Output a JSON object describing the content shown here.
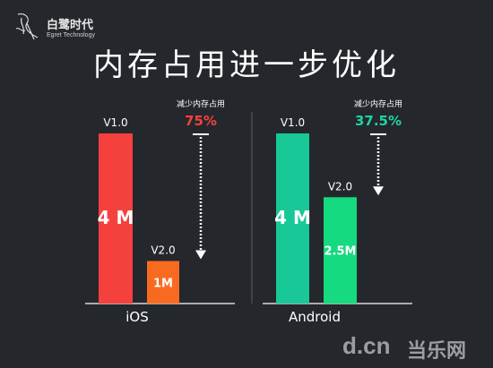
{
  "logo": {
    "name": "白鹭时代",
    "sub": "Egret Technology"
  },
  "title": "内存占用进一步优化",
  "watermark": {
    "brand": "d.cn",
    "text": "当乐网"
  },
  "colors": {
    "background": "#24272c",
    "ios_bar": "#f5413e",
    "ios_bar2": "#f96a21",
    "android_bar": "#18c896",
    "android_bar2": "#15da7f",
    "red_text": "#f5413e",
    "green_text": "#1ed3a2"
  },
  "chart_data": {
    "type": "bar",
    "unit": "M",
    "groups": [
      {
        "name": "iOS",
        "bars": [
          {
            "version": "V1.0",
            "value": 4,
            "label": "4 M"
          },
          {
            "version": "V2.0",
            "value": 1,
            "label": "1M"
          }
        ],
        "annotation": {
          "caption": "减少内存占用",
          "value": "75%"
        }
      },
      {
        "name": "Android",
        "bars": [
          {
            "version": "V1.0",
            "value": 4,
            "label": "4 M"
          },
          {
            "version": "V2.0",
            "value": 2.5,
            "label": "2.5M"
          }
        ],
        "annotation": {
          "caption": "减少内存占用",
          "value": "37.5%"
        }
      }
    ]
  }
}
